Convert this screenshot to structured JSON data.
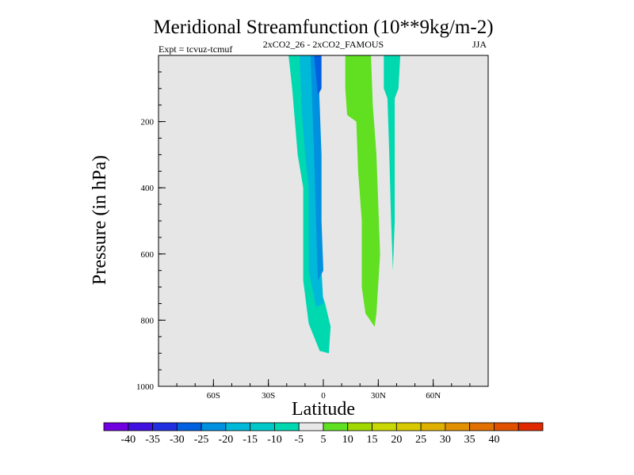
{
  "chart_data": {
    "type": "contour",
    "title": "Meridional Streamfunction (10**9kg/m-2)",
    "subtitle_left": "Expt = tcvuz-tcmuf",
    "subtitle_center": "2xCO2_26 - 2xCO2_FAMOUS",
    "subtitle_right": "JJA",
    "xlabel": "Latitude",
    "ylabel": "Pressure (in hPa)",
    "xlim": [
      -90,
      90
    ],
    "ylim": [
      1000,
      0
    ],
    "x_ticks": [
      {
        "value": -60,
        "label": "60S"
      },
      {
        "value": -30,
        "label": "30S"
      },
      {
        "value": 0,
        "label": "0"
      },
      {
        "value": 30,
        "label": "30N"
      },
      {
        "value": 60,
        "label": "60N"
      }
    ],
    "y_ticks": [
      {
        "value": 200,
        "label": "200"
      },
      {
        "value": 400,
        "label": "400"
      },
      {
        "value": 600,
        "label": "600"
      },
      {
        "value": 800,
        "label": "800"
      },
      {
        "value": 1000,
        "label": "1000"
      }
    ],
    "background_color": "#e6e6e6",
    "regions": [
      {
        "level": "-10 to -5",
        "color": "#00d8b0",
        "points": [
          [
            -19,
            0
          ],
          [
            -6,
            0
          ],
          [
            -6,
            150
          ],
          [
            -4,
            350
          ],
          [
            -3,
            530
          ],
          [
            -2,
            700
          ],
          [
            1,
            750
          ],
          [
            4,
            820
          ],
          [
            3,
            900
          ],
          [
            -2,
            893
          ],
          [
            -8,
            810
          ],
          [
            -11,
            680
          ],
          [
            -11,
            400
          ],
          [
            -14,
            300
          ],
          [
            -17,
            100
          ]
        ]
      },
      {
        "level": "-15 to -10",
        "color": "#00b8d8",
        "points": [
          [
            -13,
            0
          ],
          [
            -5,
            0
          ],
          [
            -4,
            150
          ],
          [
            -3,
            300
          ],
          [
            -2,
            500
          ],
          [
            -1,
            650
          ],
          [
            0,
            750
          ],
          [
            -4,
            760
          ],
          [
            -8,
            650
          ],
          [
            -8,
            400
          ],
          [
            -10,
            300
          ],
          [
            -12,
            150
          ]
        ]
      },
      {
        "level": "-20 to -15",
        "color": "#0090e0",
        "points": [
          [
            -7,
            0
          ],
          [
            -3,
            0
          ],
          [
            -2,
            150
          ],
          [
            -1,
            300
          ],
          [
            -1,
            500
          ],
          [
            0,
            650
          ],
          [
            -3,
            680
          ],
          [
            -4,
            500
          ],
          [
            -5,
            300
          ],
          [
            -6,
            150
          ]
        ]
      },
      {
        "level": "-25 to -20",
        "color": "#0060e0",
        "points": [
          [
            -5,
            0
          ],
          [
            -1,
            0
          ],
          [
            -1,
            100
          ],
          [
            -3,
            120
          ]
        ]
      },
      {
        "level": "5 to 10",
        "color": "#60e020",
        "points": [
          [
            12,
            0
          ],
          [
            26,
            0
          ],
          [
            27,
            150
          ],
          [
            29,
            300
          ],
          [
            30,
            450
          ],
          [
            31,
            600
          ],
          [
            29,
            780
          ],
          [
            28,
            820
          ],
          [
            23,
            780
          ],
          [
            21,
            700
          ],
          [
            21,
            500
          ],
          [
            19,
            350
          ],
          [
            18,
            200
          ],
          [
            13,
            180
          ],
          [
            12,
            100
          ]
        ]
      },
      {
        "level": "-10 to -5",
        "color": "#00d8b0",
        "points": [
          [
            33,
            0
          ],
          [
            42,
            0
          ],
          [
            41,
            100
          ],
          [
            39,
            130
          ],
          [
            39,
            300
          ],
          [
            39,
            500
          ],
          [
            38,
            650
          ],
          [
            37,
            500
          ],
          [
            36,
            300
          ],
          [
            35,
            130
          ],
          [
            33,
            100
          ]
        ]
      }
    ],
    "colorbar": {
      "colors": [
        "#7000e0",
        "#4010e0",
        "#2030e0",
        "#0060e0",
        "#0090e0",
        "#00b8d8",
        "#00c8c8",
        "#00d8b0",
        "#e8e8e8",
        "#60e020",
        "#a0d800",
        "#c8d800",
        "#d8c800",
        "#e0b000",
        "#e09000",
        "#e07000",
        "#e05000",
        "#e02800"
      ],
      "labels": [
        "-40",
        "-35",
        "-30",
        "-25",
        "-20",
        "-15",
        "-10",
        "-5",
        "5",
        "10",
        "15",
        "20",
        "25",
        "30",
        "35",
        "40"
      ]
    }
  }
}
